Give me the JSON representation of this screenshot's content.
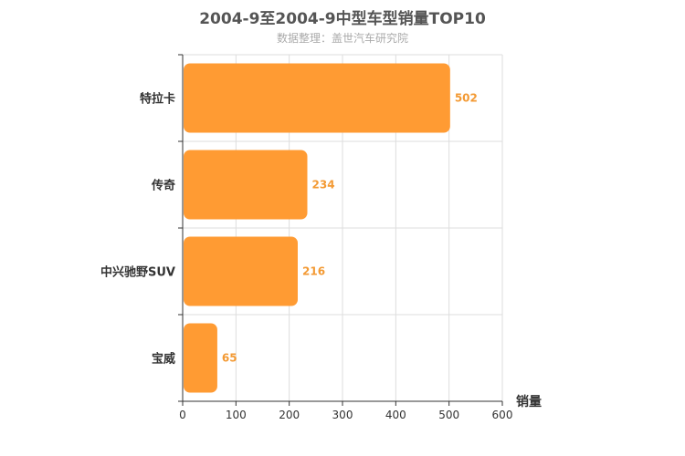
{
  "chart_data": {
    "type": "bar",
    "orientation": "horizontal",
    "title": "2004-9至2004-9中型车型销量TOP10",
    "subtitle": "数据整理：盖世汽车研究院",
    "categories": [
      "特拉卡",
      "传奇",
      "中兴驰野SUV",
      "宝威"
    ],
    "values": [
      502,
      234,
      216,
      65
    ],
    "xlabel": "销量",
    "xlim": [
      0,
      600
    ],
    "xticks": [
      0,
      100,
      200,
      300,
      400,
      500,
      600
    ],
    "grid": true,
    "bar_color": "#ff9b33",
    "label_color": "#f39a34"
  }
}
